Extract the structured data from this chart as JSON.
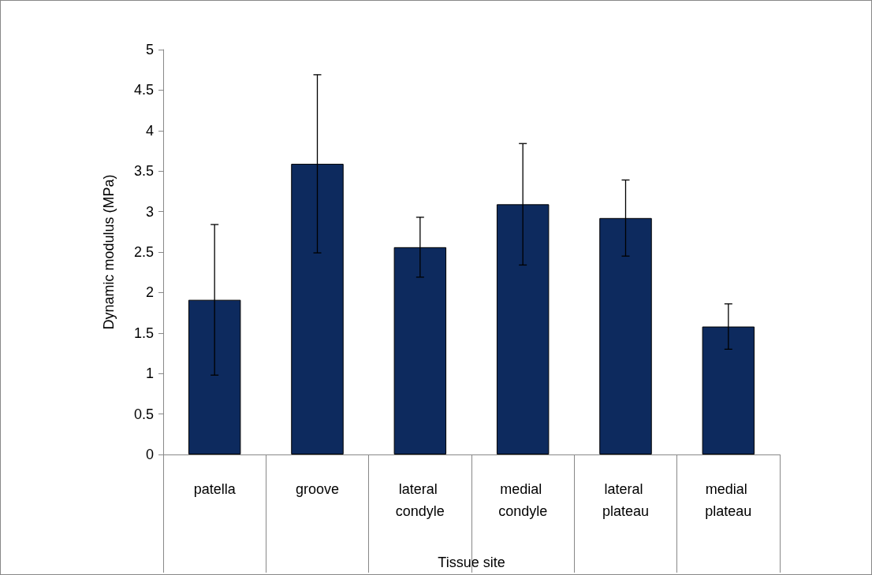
{
  "chart_data": {
    "type": "bar",
    "xlabel": "Tissue site",
    "ylabel": "Dynamic modulus (MPa)",
    "categories": [
      "patella",
      "groove",
      "lateral condyle",
      "medial condyle",
      "lateral plateau",
      "medial plateau"
    ],
    "values": [
      1.91,
      3.59,
      2.56,
      3.09,
      2.92,
      1.58
    ],
    "errors": [
      0.93,
      1.1,
      0.37,
      0.75,
      0.47,
      0.28
    ],
    "color": "#0d2a5e",
    "ylim": [
      0,
      5
    ],
    "yticks": [
      0,
      0.5,
      1,
      1.5,
      2,
      2.5,
      3,
      3.5,
      4,
      4.5,
      5
    ],
    "grid": false
  }
}
